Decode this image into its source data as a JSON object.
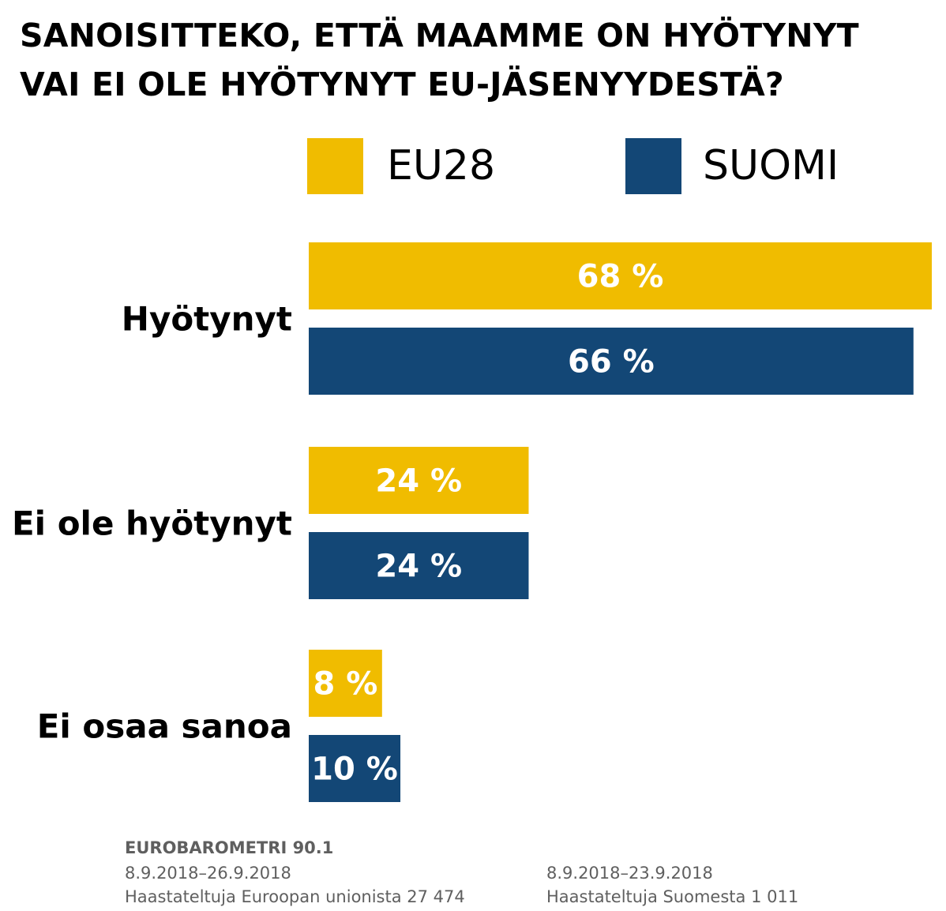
{
  "title_line1": "SANOISITTEKO, ETTÄ MAAMME ON HYÖTYNYT",
  "title_line2": "VAI EI OLE HYÖTYNYT EU-JÄSENYYDESTÄ?",
  "colors": {
    "eu28": "#f0bc00",
    "suomi": "#134776",
    "value_label": "#ffffff"
  },
  "chart_data": {
    "type": "bar",
    "orientation": "horizontal",
    "categories": [
      "Hyötynyt",
      "Ei ole hyötynyt",
      "Ei osaa sanoa"
    ],
    "series": [
      {
        "name": "EU28",
        "values": [
          68,
          24,
          8
        ],
        "labels": [
          "68 %",
          "24 %",
          "8 %"
        ]
      },
      {
        "name": "SUOMI",
        "values": [
          66,
          24,
          10
        ],
        "labels": [
          "66 %",
          "24 %",
          "10 %"
        ]
      }
    ],
    "xlim": [
      0,
      68
    ],
    "legend": "top-right",
    "grid": false
  },
  "footer": {
    "source": "EUROBAROMETRI 90.1",
    "eu_dates": "8.9.2018–26.9.2018",
    "eu_sample": "Haastateltuja Euroopan unionista 27 474",
    "fi_dates": "8.9.2018–23.9.2018",
    "fi_sample": "Haastateltuja Suomesta 1 011"
  }
}
